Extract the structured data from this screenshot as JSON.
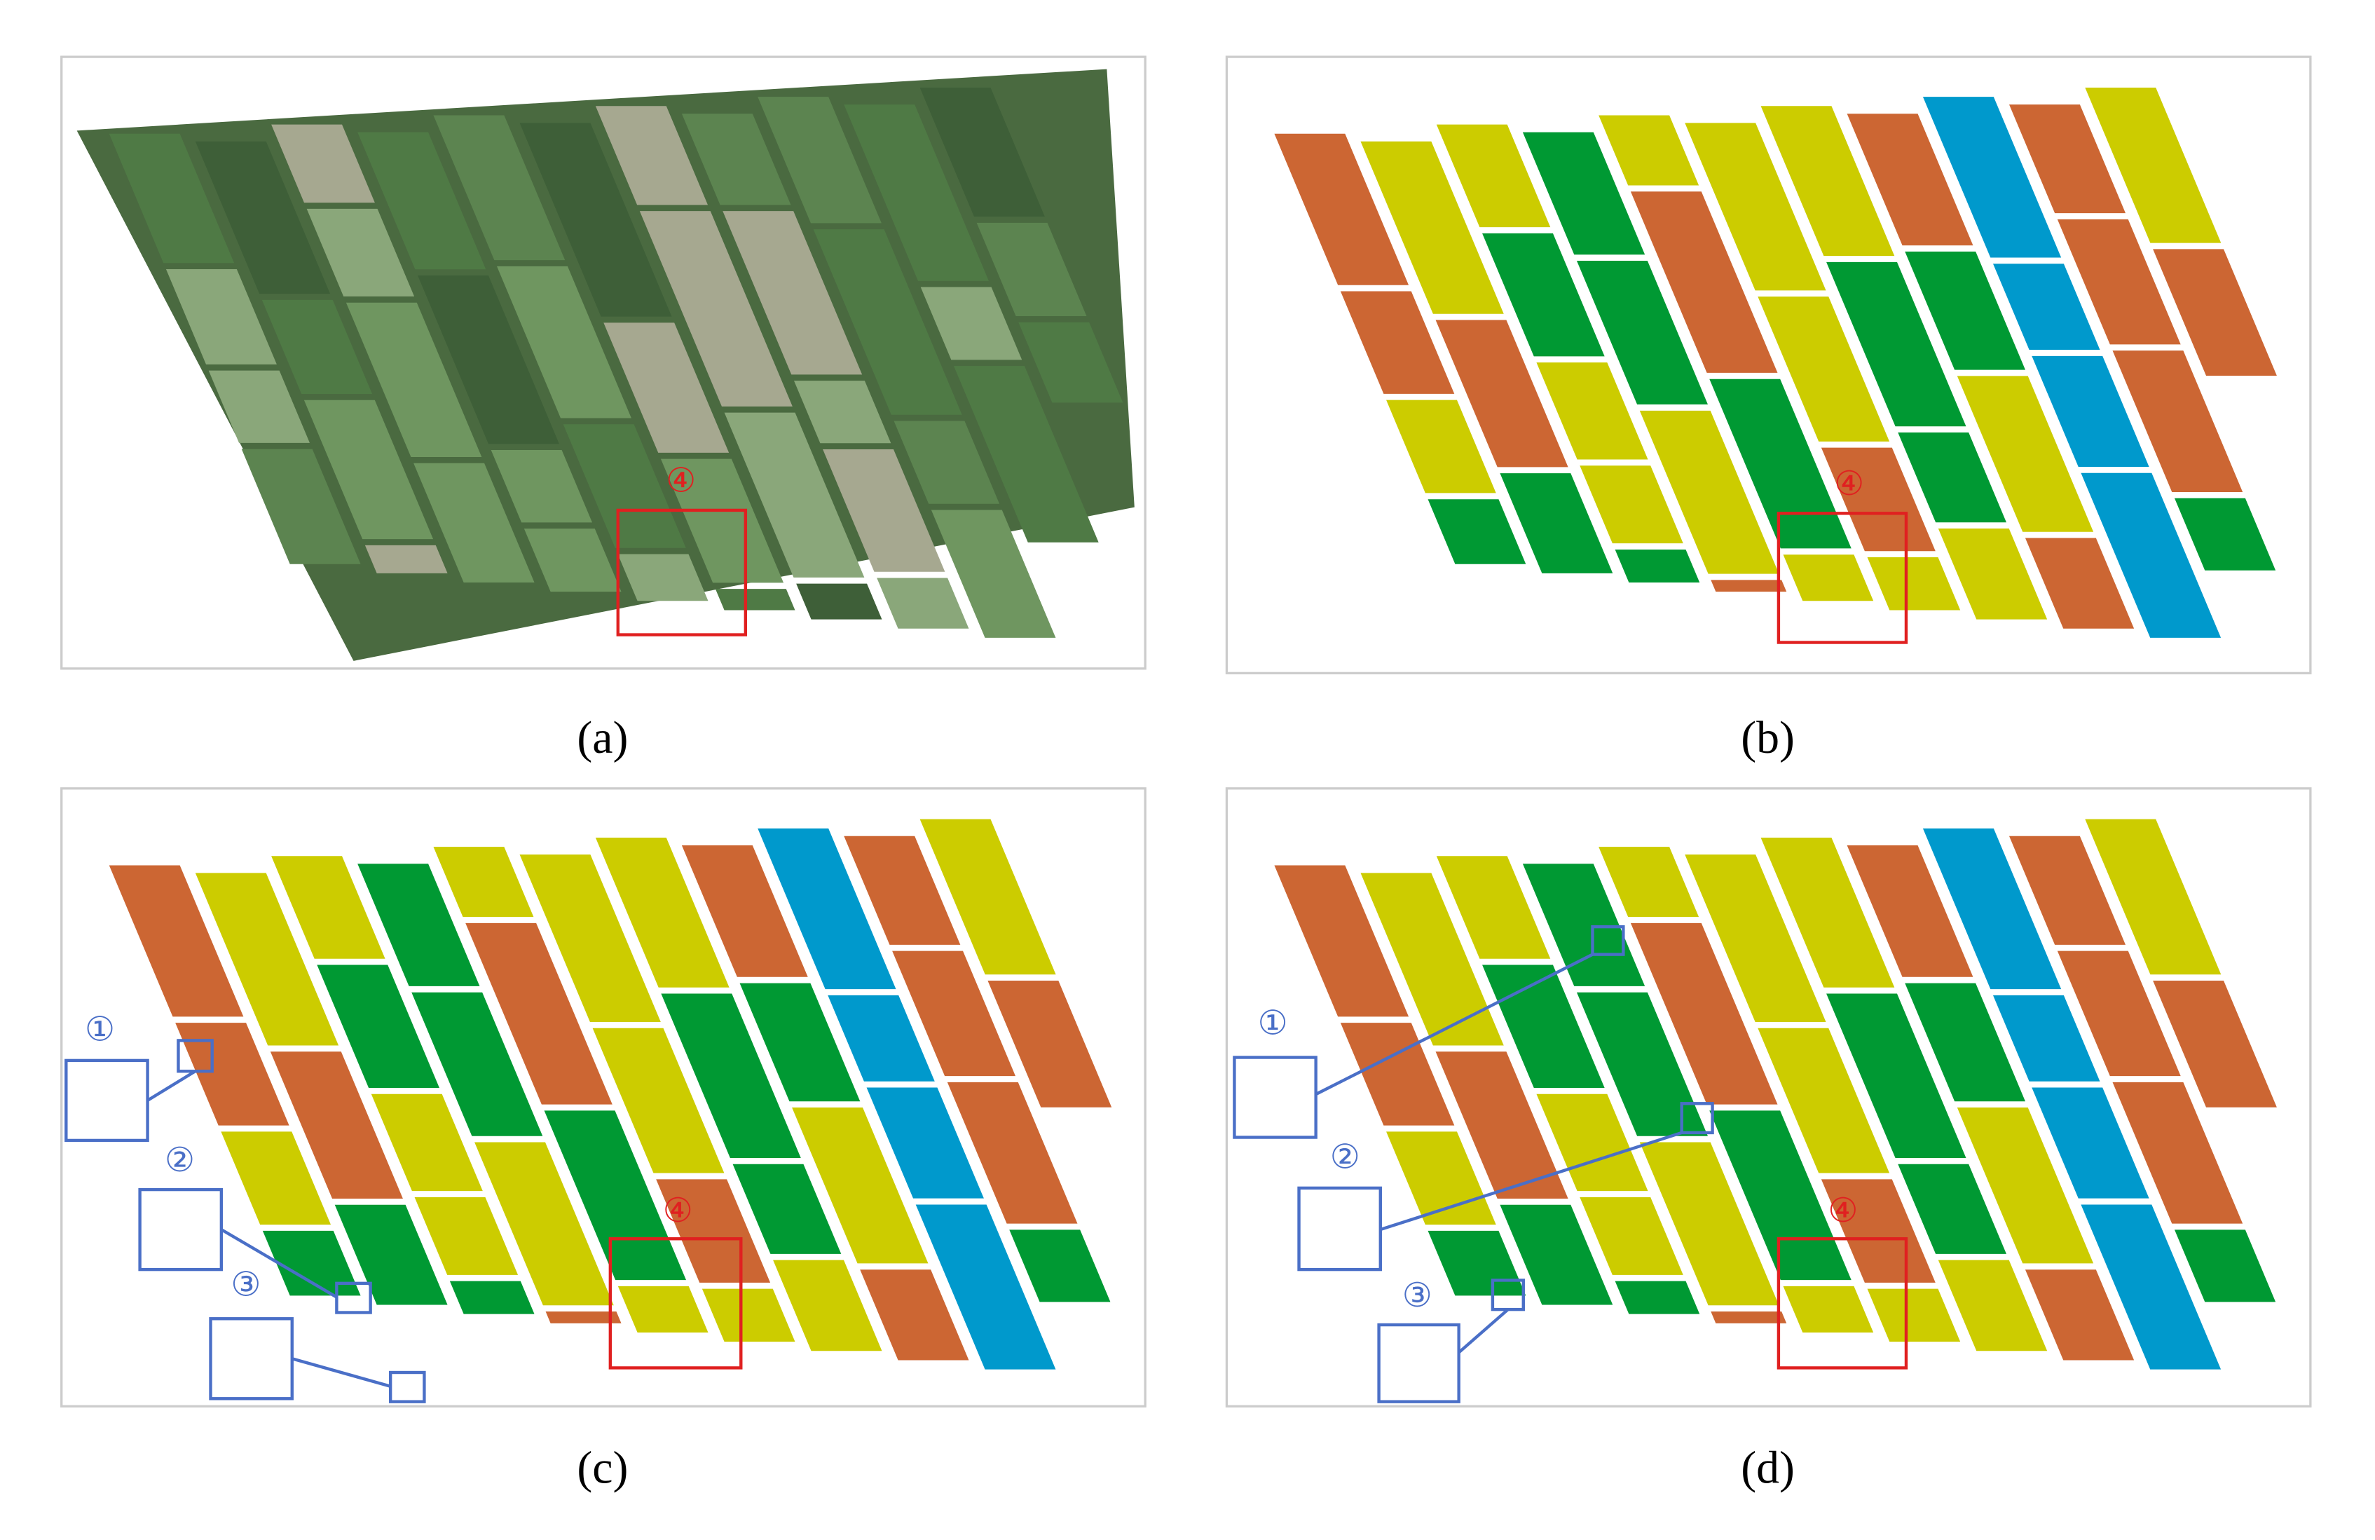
{
  "panels": [
    {
      "label": "(a)",
      "markers": [
        "④"
      ]
    },
    {
      "label": "(b)",
      "markers": [
        "④"
      ]
    },
    {
      "label": "(c)",
      "markers": [
        "①",
        "②",
        "③",
        "④"
      ]
    },
    {
      "label": "(d)",
      "markers": [
        "①",
        "②",
        "③",
        "④"
      ]
    }
  ]
}
